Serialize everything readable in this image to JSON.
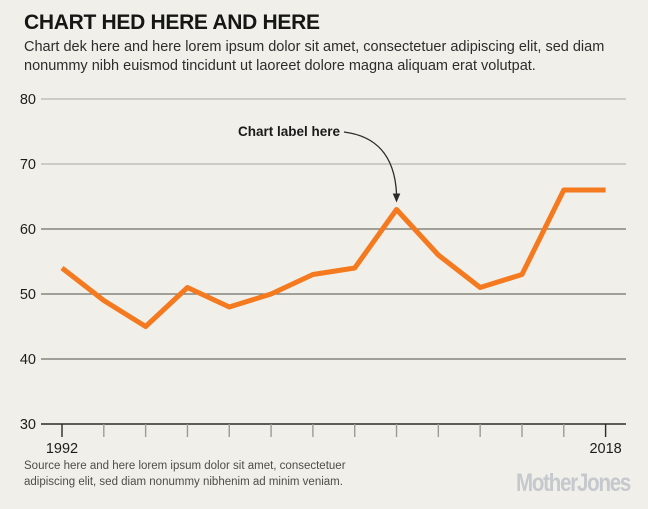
{
  "header": {
    "title": "CHART HED HERE AND HERE",
    "dek": "Chart dek here and here lorem ipsum dolor sit amet, consectetuer adipiscing elit, sed diam\nnonummy nibh euismod tincidunt ut laoreet dolore magna aliquam erat volutpat."
  },
  "chart_data": {
    "type": "line",
    "title": "CHART HED HERE AND HERE",
    "x": [
      1992,
      1994,
      1996,
      1998,
      2000,
      2002,
      2004,
      2006,
      2008,
      2010,
      2012,
      2014,
      2016,
      2018
    ],
    "values": [
      54,
      49,
      45,
      51,
      48,
      50,
      53,
      54,
      63,
      56,
      51,
      53,
      66,
      66
    ],
    "series_name": "",
    "xlabel": "",
    "ylabel": "",
    "ylim": [
      30,
      80
    ],
    "yticks": [
      30,
      40,
      50,
      60,
      70,
      80
    ],
    "xtick_step_years": 2,
    "x_labeled_ticks": [
      1992,
      2018
    ],
    "grid": "horizontal",
    "legend": "none",
    "annotation": {
      "label": "Chart label here",
      "target_x": 2008,
      "target_y": 63
    }
  },
  "footer": {
    "source": "Source here and here lorem ipsum dolor sit amet, consectetuer\nadipiscing elit, sed diam nonummy nibhenim ad minim veniam.",
    "logo": "MotherJones"
  },
  "colors": {
    "background": "#f0efe9",
    "line_orange": "#f5791e",
    "grid_light": "#b7b7b1",
    "grid_dark": "#6f6f69",
    "axis_black": "#2b2b29",
    "tick_minor": "#9b9b95",
    "axis_label": "#1d1d1b",
    "title_text": "#161614",
    "dek_text": "#2d2d2b",
    "source_text": "#4d4d49",
    "logo_gray": "#c5c9cd",
    "annotation_text": "#1a1a18"
  }
}
